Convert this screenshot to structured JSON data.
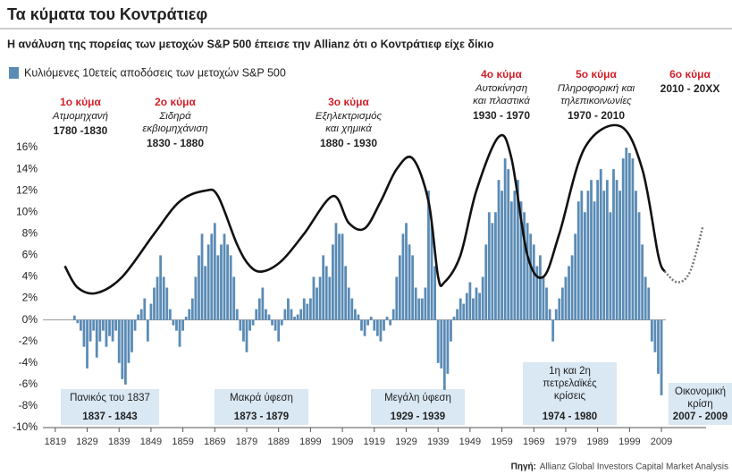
{
  "chart_data": {
    "type": "bar",
    "title": "Τα κύματα του Κοντράτιεφ",
    "subtitle": "Η ανάλυση της πορείας των μετοχών S&P 500 έπεισε την Allianz ότι ο Κοντράτιεφ είχε δίκιο",
    "source_label": "Πηγή:",
    "source": "Allianz Global Investors Capital Market Analysis",
    "xlim": [
      1814,
      2030
    ],
    "ylim": [
      -10,
      17
    ],
    "xticks": [
      1819,
      1829,
      1839,
      1849,
      1859,
      1869,
      1879,
      1889,
      1899,
      1909,
      1919,
      1929,
      1939,
      1949,
      1959,
      1969,
      1979,
      1989,
      1999,
      2009
    ],
    "yticks": [
      {
        "value": -10,
        "label": "-10%"
      },
      {
        "value": -8,
        "label": "-8%"
      },
      {
        "value": -6,
        "label": "-6%"
      },
      {
        "value": -4,
        "label": "-4%"
      },
      {
        "value": -2,
        "label": "-2%"
      },
      {
        "value": 0,
        "label": "0%"
      },
      {
        "value": 2,
        "label": "2%"
      },
      {
        "value": 4,
        "label": "4%"
      },
      {
        "value": 6,
        "label": "6%"
      },
      {
        "value": 8,
        "label": "8%"
      },
      {
        "value": 10,
        "label": "10%"
      },
      {
        "value": 12,
        "label": "12%"
      },
      {
        "value": 14,
        "label": "14%"
      },
      {
        "value": 16,
        "label": "16%"
      }
    ],
    "bars": {
      "name": "Κυλιόμενες 10ετείς αποδόσεις των μετοχών S&P 500",
      "color": "#5a8bb5",
      "x": [
        1825,
        1826,
        1827,
        1828,
        1829,
        1830,
        1831,
        1832,
        1833,
        1834,
        1835,
        1836,
        1837,
        1838,
        1839,
        1840,
        1841,
        1842,
        1843,
        1844,
        1845,
        1846,
        1847,
        1848,
        1849,
        1850,
        1851,
        1852,
        1853,
        1854,
        1855,
        1856,
        1857,
        1858,
        1859,
        1860,
        1861,
        1862,
        1863,
        1864,
        1865,
        1866,
        1867,
        1868,
        1869,
        1870,
        1871,
        1872,
        1873,
        1874,
        1875,
        1876,
        1877,
        1878,
        1879,
        1880,
        1881,
        1882,
        1883,
        1884,
        1885,
        1886,
        1887,
        1888,
        1889,
        1890,
        1891,
        1892,
        1893,
        1894,
        1895,
        1896,
        1897,
        1898,
        1899,
        1900,
        1901,
        1902,
        1903,
        1904,
        1905,
        1906,
        1907,
        1908,
        1909,
        1910,
        1911,
        1912,
        1913,
        1914,
        1915,
        1916,
        1917,
        1918,
        1919,
        1920,
        1921,
        1922,
        1923,
        1924,
        1925,
        1926,
        1927,
        1928,
        1929,
        1930,
        1931,
        1932,
        1933,
        1934,
        1935,
        1936,
        1937,
        1938,
        1939,
        1940,
        1941,
        1942,
        1943,
        1944,
        1945,
        1946,
        1947,
        1948,
        1949,
        1950,
        1951,
        1952,
        1953,
        1954,
        1955,
        1956,
        1957,
        1958,
        1959,
        1960,
        1961,
        1962,
        1963,
        1964,
        1965,
        1966,
        1967,
        1968,
        1969,
        1970,
        1971,
        1972,
        1973,
        1974,
        1975,
        1976,
        1977,
        1978,
        1979,
        1980,
        1981,
        1982,
        1983,
        1984,
        1985,
        1986,
        1987,
        1988,
        1989,
        1990,
        1991,
        1992,
        1993,
        1994,
        1995,
        1996,
        1997,
        1998,
        1999,
        2000,
        2001,
        2002,
        2003,
        2004,
        2005,
        2006,
        2007,
        2008,
        2009
      ],
      "values": [
        0.4,
        -0.3,
        -1,
        -2.5,
        -4.5,
        -2,
        -1,
        -3.5,
        -2,
        -1,
        -2.5,
        -1.5,
        -2,
        -1,
        -4,
        -5.5,
        -6,
        -4,
        -3,
        -1,
        0.5,
        1,
        2,
        -2,
        1.5,
        3,
        4,
        6,
        4,
        3,
        1,
        -0.5,
        -1,
        -2.5,
        -1,
        0.3,
        1,
        2,
        4,
        6,
        8,
        5,
        7,
        8,
        9,
        6,
        7,
        8,
        7,
        6,
        4,
        1,
        -1,
        -2,
        -3,
        -1,
        -0.5,
        1,
        2,
        3,
        1,
        0.5,
        -0.5,
        -1,
        -2,
        -0.5,
        1,
        2,
        1,
        0.3,
        0.5,
        1,
        2,
        1.5,
        2,
        4,
        3,
        4,
        6,
        5,
        4,
        7,
        9,
        8,
        8,
        5,
        3,
        2,
        1,
        0.5,
        -1,
        -1.5,
        -0.5,
        0.3,
        -1,
        -1.5,
        -2,
        -1,
        0.3,
        -0.5,
        1,
        4,
        6,
        8,
        9,
        7,
        6,
        3,
        2,
        2,
        3,
        12,
        9,
        5,
        -4,
        -4.5,
        -6.5,
        -5,
        -2,
        0.3,
        1,
        2,
        1.5,
        2.5,
        3.5,
        2,
        3,
        2.5,
        4,
        7,
        10,
        9,
        10,
        13,
        12,
        15,
        14,
        11,
        12,
        13,
        11,
        10,
        9,
        8,
        7,
        5,
        6,
        4,
        3,
        1,
        -2,
        1,
        2,
        3,
        4,
        5,
        6,
        8,
        11,
        12,
        10,
        12,
        13,
        11,
        13,
        14,
        12,
        13,
        10,
        14,
        13,
        12,
        15,
        16,
        15.5,
        15,
        12,
        10,
        7,
        4,
        3,
        -2,
        -3,
        -5,
        -7
      ]
    },
    "series": [
      {
        "name": "Κύματα Κοντράτιεφ",
        "color": "#111111",
        "style": "solid",
        "x": [
          1822,
          1826,
          1832,
          1840,
          1850,
          1858,
          1866,
          1870,
          1876,
          1880,
          1884,
          1890,
          1897,
          1906,
          1911,
          1916,
          1921,
          1926,
          1931,
          1936,
          1939,
          1941,
          1946,
          1951,
          1958,
          1962,
          1967,
          1972,
          1977,
          1985,
          1996,
          2003,
          2008,
          2010
        ],
        "values": [
          5,
          3,
          2.5,
          4,
          8,
          11,
          12,
          11.5,
          7,
          5,
          4.5,
          5.5,
          8,
          11.5,
          9,
          8.5,
          11,
          14,
          15,
          11,
          4,
          3.5,
          6,
          12,
          17,
          15,
          6,
          4,
          8,
          16,
          18,
          14,
          6,
          4.5
        ]
      },
      {
        "name": "Πρόβλεψη",
        "color": "#777777",
        "style": "dotted",
        "x": [
          2010,
          2014,
          2018,
          2022
        ],
        "values": [
          4.5,
          3.5,
          4.5,
          8.7
        ]
      }
    ],
    "waves": [
      {
        "label": "1ο κύμα",
        "lines": [
          "Ατμομηχανή"
        ],
        "period": "1780 -1830"
      },
      {
        "label": "2ο κύμα",
        "lines": [
          "Σιδηρά",
          "εκβιομηχάνιση"
        ],
        "period": "1830 - 1880"
      },
      {
        "label": "3ο κύμα",
        "lines": [
          "Εξηλεκτρισμός",
          "και χημικά"
        ],
        "period": "1880 - 1930"
      },
      {
        "label": "4ο κύμα",
        "lines": [
          "Αυτοκίνηση",
          "και πλαστικά"
        ],
        "period": "1930 - 1970"
      },
      {
        "label": "5ο κύμα",
        "lines": [
          "Πληροφορική και",
          "τηλεπικοινωνίες"
        ],
        "period": "1970 - 2010"
      },
      {
        "label": "6ο κύμα",
        "lines": [],
        "period": "2010 - 20XX"
      }
    ],
    "crises": [
      {
        "lines": [
          "Πανικός του 1837"
        ],
        "period": "1837 - 1843"
      },
      {
        "lines": [
          "Μακρά ύφεση"
        ],
        "period": "1873 - 1879"
      },
      {
        "lines": [
          "Μεγάλη ύφεση"
        ],
        "period": "1929 - 1939"
      },
      {
        "lines": [
          "1η και 2η",
          "πετρελαϊκές",
          "κρίσεις"
        ],
        "period": "1974 - 1980"
      },
      {
        "lines": [
          "Οικονομική",
          "κρίση"
        ],
        "period": "2007 - 2009"
      }
    ]
  }
}
